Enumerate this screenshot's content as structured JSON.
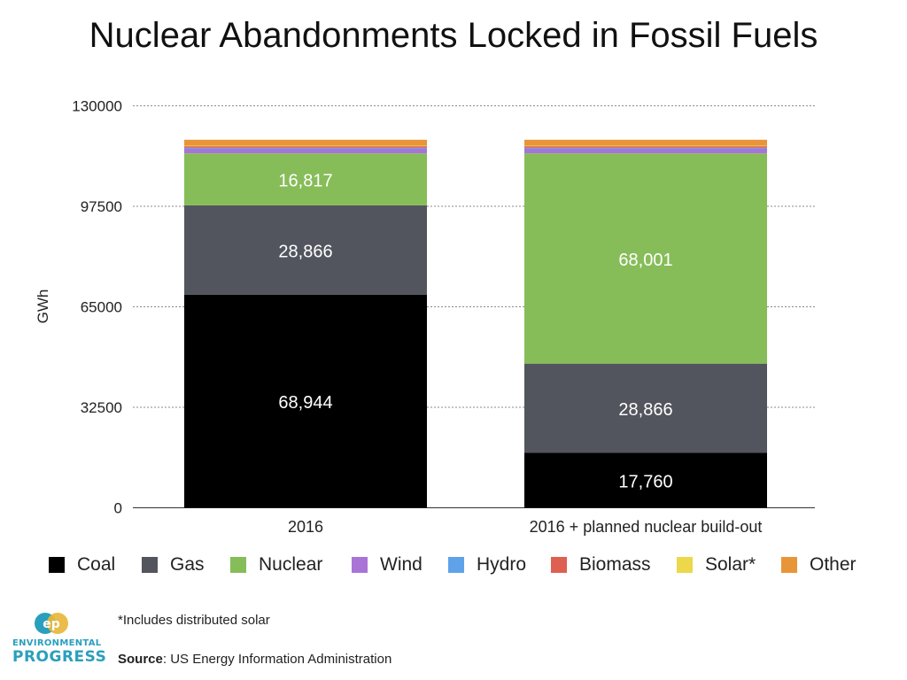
{
  "title": "Nuclear Abandonments Locked in Fossil Fuels",
  "footnote": "*Includes distributed solar",
  "source": {
    "label": "Source",
    "text": ": US Energy Information Administration"
  },
  "logo": {
    "line1": "ENVIRONMENTAL",
    "line2": "PROGRESS",
    "mark": "ep"
  },
  "colors": {
    "Coal": "#000000",
    "Gas": "#53555e",
    "Nuclear": "#86bd58",
    "Wind": "#a974d6",
    "Hydro": "#5fa2ea",
    "Biomass": "#dd6050",
    "Solar*": "#ecd84a",
    "Other": "#e8953a"
  },
  "chart_data": {
    "type": "bar",
    "stacked": true,
    "categories": [
      "2016",
      "2016 + planned nuclear build-out"
    ],
    "series": [
      {
        "name": "Coal",
        "values": [
          68944,
          17760
        ]
      },
      {
        "name": "Gas",
        "values": [
          28866,
          28866
        ]
      },
      {
        "name": "Nuclear",
        "values": [
          16817,
          68001
        ]
      },
      {
        "name": "Wind",
        "values": [
          1500,
          1500
        ]
      },
      {
        "name": "Hydro",
        "values": [
          300,
          300
        ]
      },
      {
        "name": "Biomass",
        "values": [
          500,
          500
        ]
      },
      {
        "name": "Solar*",
        "values": [
          200,
          200
        ]
      },
      {
        "name": "Other",
        "values": [
          1900,
          1900
        ]
      }
    ],
    "data_labels": {
      "Coal": [
        "68,944",
        "17,760"
      ],
      "Gas": [
        "28,866",
        "28,866"
      ],
      "Nuclear": [
        "16,817",
        "68,001"
      ]
    },
    "title": "Nuclear Abandonments Locked in Fossil Fuels",
    "xlabel": "",
    "ylabel": "GWh",
    "ylim": [
      0,
      130000
    ],
    "yticks": [
      0,
      32500,
      65000,
      97500,
      130000
    ],
    "grid": true,
    "legend": [
      "Coal",
      "Gas",
      "Nuclear",
      "Wind",
      "Hydro",
      "Biomass",
      "Solar*",
      "Other"
    ],
    "legend_position": "bottom"
  }
}
